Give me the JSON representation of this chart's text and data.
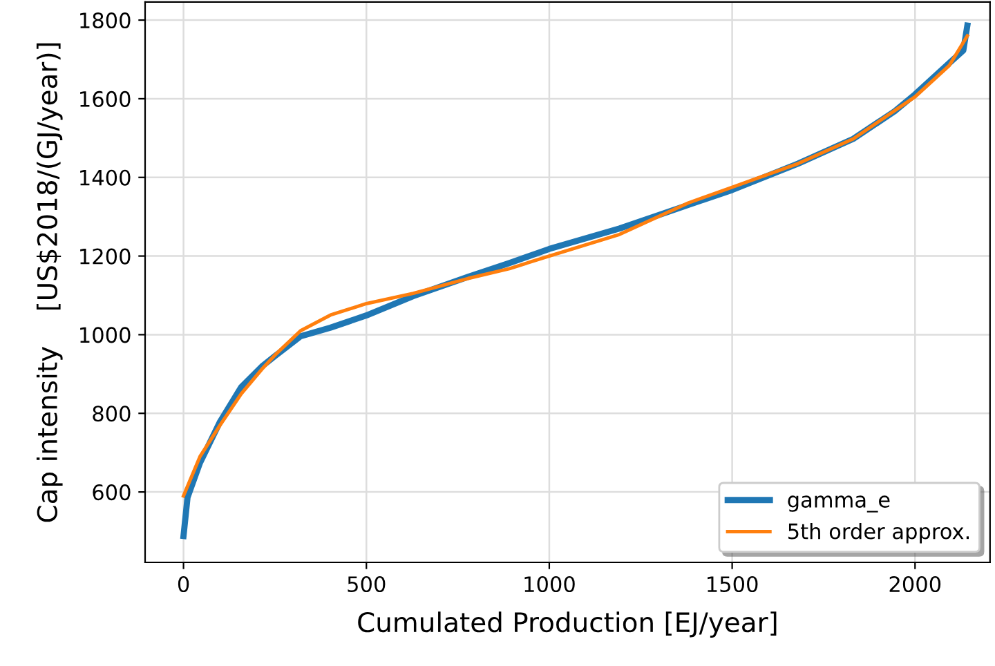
{
  "chart_data": {
    "type": "line",
    "xlabel": "Cumulated Production [EJ/year]",
    "ylabel": "Cap intensity    [US$2018/(GJ/year)]",
    "xlim": [
      -105,
      2205
    ],
    "ylim": [
      421,
      1846
    ],
    "xticks": [
      0,
      500,
      1000,
      1500,
      2000
    ],
    "yticks": [
      600,
      800,
      1000,
      1200,
      1400,
      1600,
      1800
    ],
    "grid": true,
    "legend": "bottom right",
    "line_style": "solid",
    "marker": "none",
    "series": [
      {
        "name": "gamma_e",
        "color": "#1f77b4",
        "x": [
          0,
          11,
          45,
          100,
          158,
          214,
          252,
          320,
          402,
          500,
          628,
          778,
          891,
          1000,
          1192,
          1380,
          1500,
          1680,
          1831,
          1944,
          2000,
          2094,
          2132,
          2143
        ],
        "values": [
          488,
          586,
          674,
          779,
          867,
          919,
          947,
          996,
          1018,
          1049,
          1098,
          1147,
          1182,
          1218,
          1270,
          1330,
          1368,
          1435,
          1498,
          1568,
          1611,
          1691,
          1723,
          1786
        ]
      },
      {
        "name": "5th order approx.",
        "color": "#ff7f0e",
        "x": [
          0,
          45,
          100,
          158,
          214,
          252,
          320,
          402,
          500,
          628,
          778,
          891,
          1000,
          1192,
          1380,
          1500,
          1680,
          1831,
          2000,
          2094,
          2143
        ],
        "values": [
          590,
          690,
          770,
          850,
          912,
          950,
          1010,
          1050,
          1079,
          1105,
          1143,
          1168,
          1200,
          1255,
          1335,
          1375,
          1435,
          1498,
          1605,
          1685,
          1760
        ]
      }
    ]
  }
}
